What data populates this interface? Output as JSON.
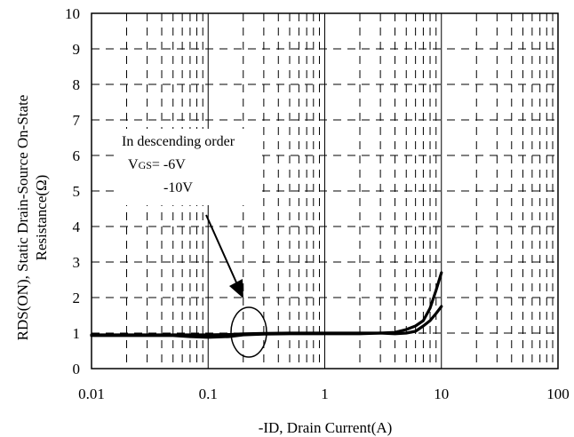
{
  "chart_data": {
    "type": "line",
    "xscale": "log",
    "xlim": [
      0.01,
      100
    ],
    "ylim": [
      0,
      10
    ],
    "xticks": [
      "0.01",
      "0.1",
      "1",
      "10",
      "100"
    ],
    "yticks": [
      "0",
      "1",
      "2",
      "3",
      "4",
      "5",
      "6",
      "7",
      "8",
      "9",
      "10"
    ],
    "xlabel": "-ID, Drain Current(A)",
    "ylabel_line1": "RDS(ON), Static Drain-Source On-State",
    "ylabel_line2": "Resistance(Ω)",
    "grid": true,
    "series": [
      {
        "x": [
          0.01,
          0.02,
          0.05,
          0.07,
          0.1,
          0.15,
          0.2,
          0.3,
          0.5,
          1,
          2,
          3,
          4,
          5,
          6,
          7,
          8,
          9,
          10
        ],
        "y": [
          0.93,
          0.93,
          0.93,
          0.9,
          0.88,
          0.9,
          0.95,
          0.97,
          0.98,
          0.98,
          0.98,
          1.0,
          1.02,
          1.1,
          1.2,
          1.35,
          1.7,
          2.2,
          2.7
        ]
      },
      {
        "x": [
          0.01,
          0.02,
          0.05,
          0.07,
          0.1,
          0.15,
          0.2,
          0.3,
          0.5,
          1,
          2,
          3,
          4,
          5,
          6,
          7,
          8,
          9,
          10
        ],
        "y": [
          0.95,
          0.95,
          0.95,
          0.95,
          0.95,
          0.96,
          0.98,
          0.99,
          1.0,
          1.0,
          1.0,
          1.0,
          0.98,
          1.0,
          1.05,
          1.2,
          1.35,
          1.55,
          1.75
        ]
      }
    ],
    "annotation": {
      "line1": "In descending order",
      "vgs_prefix": "V",
      "vgs_sub": "GS",
      "vgs_value1": "= -6V",
      "vgs_value2": "-10V"
    }
  }
}
